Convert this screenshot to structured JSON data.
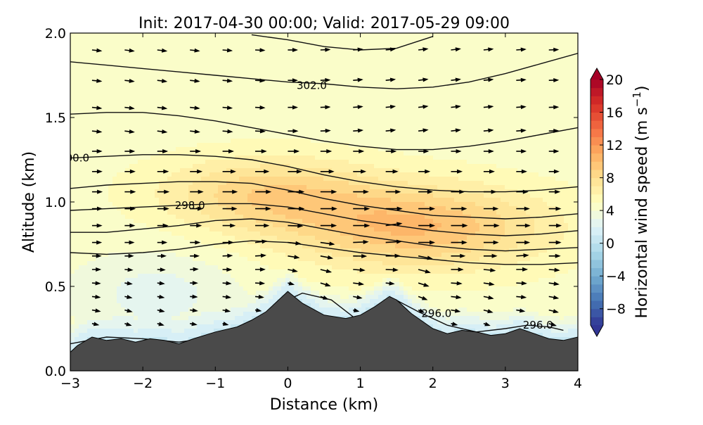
{
  "chart_data": {
    "type": "contourf-quiver",
    "title": "Init: 2017-04-30 00:00; Valid: 2017-05-29 09:00",
    "xlabel": "Distance (km)",
    "ylabel": "Altitude (km)",
    "xlim": [
      -3,
      4
    ],
    "ylim": [
      0.0,
      2.0
    ],
    "xticks": [
      -3,
      -2,
      -1,
      0,
      1,
      2,
      3,
      4
    ],
    "xtick_labels": [
      "−3",
      "−2",
      "−1",
      "0",
      "1",
      "2",
      "3",
      "4"
    ],
    "yticks": [
      0.0,
      0.5,
      1.0,
      1.5,
      2.0
    ],
    "ytick_labels": [
      "0.0",
      "0.5",
      "1.0",
      "1.5",
      "2.0"
    ],
    "colorbar": {
      "label": "Horizontal wind speed (m s",
      "label_exponent": "−1",
      "label_close": ")",
      "min": -10,
      "max": 20,
      "ticks": [
        20,
        16,
        12,
        8,
        4,
        0,
        -4,
        -8
      ],
      "tick_labels": [
        "20",
        "16",
        "12",
        "8",
        "4",
        "0",
        "−4",
        "−8"
      ],
      "colormap": "RdYlBu_r",
      "extend": "both"
    },
    "terrain": {
      "x": [
        -3.0,
        -2.9,
        -2.7,
        -2.5,
        -2.3,
        -2.1,
        -1.9,
        -1.7,
        -1.5,
        -1.3,
        -1.0,
        -0.7,
        -0.5,
        -0.3,
        -0.1,
        0.0,
        0.2,
        0.5,
        0.8,
        1.0,
        1.2,
        1.4,
        1.5,
        1.7,
        2.0,
        2.2,
        2.4,
        2.6,
        2.8,
        3.0,
        3.2,
        3.4,
        3.6,
        3.8,
        4.0
      ],
      "y": [
        0.11,
        0.15,
        0.2,
        0.18,
        0.19,
        0.17,
        0.19,
        0.18,
        0.16,
        0.19,
        0.23,
        0.26,
        0.3,
        0.35,
        0.43,
        0.47,
        0.4,
        0.33,
        0.31,
        0.33,
        0.38,
        0.44,
        0.42,
        0.34,
        0.25,
        0.22,
        0.24,
        0.23,
        0.21,
        0.22,
        0.25,
        0.22,
        0.19,
        0.18,
        0.2
      ],
      "color": "#4a4a4a"
    },
    "contours": [
      {
        "name": "theta-296-a",
        "x": [
          -3.0,
          -2.5,
          -2.0,
          -1.5,
          -1.0,
          -0.5,
          -0.1,
          0.2,
          0.6,
          0.9
        ],
        "y": [
          0.16,
          0.2,
          0.19,
          0.17,
          0.2,
          0.26,
          0.4,
          0.46,
          0.42,
          0.32
        ]
      },
      {
        "name": "theta-296-b",
        "x": [
          1.4,
          1.8,
          2.2,
          2.6,
          3.0,
          3.3,
          3.6,
          3.8
        ],
        "y": [
          0.44,
          0.35,
          0.27,
          0.23,
          0.25,
          0.27,
          0.26,
          0.24
        ]
      },
      {
        "name": "theta-297",
        "x": [
          -3.0,
          -2.5,
          -2.0,
          -1.5,
          -1.0,
          -0.5,
          0.0,
          0.5,
          1.0,
          1.5,
          2.0,
          2.5,
          3.0,
          3.5,
          4.0
        ],
        "y": [
          0.7,
          0.69,
          0.7,
          0.72,
          0.75,
          0.77,
          0.76,
          0.73,
          0.7,
          0.68,
          0.66,
          0.64,
          0.63,
          0.63,
          0.64
        ]
      },
      {
        "name": "theta-297b",
        "x": [
          -3.0,
          -2.5,
          -2.0,
          -1.5,
          -1.0,
          -0.5,
          0.0,
          0.5,
          1.0,
          1.5,
          2.0,
          2.5,
          3.0,
          3.5,
          4.0
        ],
        "y": [
          0.82,
          0.82,
          0.84,
          0.86,
          0.89,
          0.9,
          0.88,
          0.84,
          0.8,
          0.77,
          0.74,
          0.72,
          0.71,
          0.72,
          0.73
        ]
      },
      {
        "name": "theta-298",
        "x": [
          -3.0,
          -2.5,
          -2.0,
          -1.5,
          -1.0,
          -0.5,
          0.0,
          0.5,
          1.0,
          1.5,
          2.0,
          2.5,
          3.0,
          3.5,
          4.0
        ],
        "y": [
          0.95,
          0.96,
          0.97,
          0.98,
          0.99,
          0.99,
          0.97,
          0.93,
          0.89,
          0.86,
          0.83,
          0.81,
          0.8,
          0.81,
          0.83
        ]
      },
      {
        "name": "theta-299",
        "x": [
          -3.0,
          -2.5,
          -2.0,
          -1.5,
          -1.0,
          -0.5,
          0.0,
          0.5,
          1.0,
          1.5,
          2.0,
          2.5,
          3.0,
          3.5,
          4.0
        ],
        "y": [
          1.08,
          1.1,
          1.11,
          1.12,
          1.12,
          1.11,
          1.07,
          1.02,
          0.98,
          0.95,
          0.92,
          0.91,
          0.9,
          0.91,
          0.93
        ]
      },
      {
        "name": "theta-300",
        "x": [
          -3.0,
          -2.5,
          -2.0,
          -1.5,
          -1.0,
          -0.5,
          0.0,
          0.5,
          1.0,
          1.5,
          2.0,
          2.5,
          3.0,
          3.5,
          4.0
        ],
        "y": [
          1.26,
          1.27,
          1.28,
          1.28,
          1.27,
          1.25,
          1.21,
          1.16,
          1.12,
          1.09,
          1.07,
          1.06,
          1.06,
          1.07,
          1.09
        ]
      },
      {
        "name": "theta-301",
        "x": [
          -3.0,
          -2.5,
          -2.0,
          -1.5,
          -1.0,
          -0.5,
          0.0,
          0.5,
          1.0,
          1.5,
          2.0,
          2.5,
          3.0,
          3.5,
          4.0
        ],
        "y": [
          1.52,
          1.53,
          1.53,
          1.51,
          1.48,
          1.44,
          1.4,
          1.36,
          1.33,
          1.31,
          1.31,
          1.33,
          1.36,
          1.4,
          1.44
        ]
      },
      {
        "name": "theta-302",
        "x": [
          -3.0,
          -2.5,
          -2.0,
          -1.5,
          -1.0,
          -0.5,
          0.0,
          0.5,
          1.0,
          1.5,
          2.0,
          2.5,
          3.0,
          3.5,
          4.0
        ],
        "y": [
          1.83,
          1.81,
          1.79,
          1.77,
          1.75,
          1.73,
          1.71,
          1.7,
          1.68,
          1.67,
          1.68,
          1.71,
          1.76,
          1.82,
          1.88
        ]
      },
      {
        "name": "theta-303",
        "x": [
          -0.5,
          0.0,
          0.5,
          1.0,
          1.5,
          2.0
        ],
        "y": [
          1.99,
          1.96,
          1.92,
          1.9,
          1.91,
          1.98
        ]
      }
    ],
    "contour_labels": [
      {
        "text": "302.0",
        "x": 0.33,
        "y": 1.69
      },
      {
        "text": "00.0",
        "x": -2.9,
        "y": 1.26
      },
      {
        "text": "298.0",
        "x": -1.35,
        "y": 0.98
      },
      {
        "text": "296.0",
        "x": 2.05,
        "y": 0.34
      },
      {
        "text": "296.0",
        "x": 3.45,
        "y": 0.27
      }
    ],
    "wind_field": {
      "x_positions": [
        -2.7,
        -2.25,
        -1.8,
        -1.35,
        -0.9,
        -0.45,
        0.0,
        0.45,
        0.9,
        1.35,
        1.8,
        2.25,
        2.7,
        3.15,
        3.6
      ],
      "levels": [
        0.28,
        0.36,
        0.44,
        0.52,
        0.6,
        0.68,
        0.76,
        0.86,
        0.96,
        1.06,
        1.18,
        1.3,
        1.42,
        1.56,
        1.72,
        1.9
      ],
      "scale": 8
    },
    "speed_field": {
      "core_x": 1.8,
      "core_y": 0.85,
      "core_speed": 10,
      "secondary_x": -0.3,
      "secondary_y": 1.05,
      "secondary_speed": 9,
      "background_speed": 4.5,
      "calm_x": -1.8,
      "calm_y": 0.45,
      "calm_speed": 2.5
    }
  }
}
